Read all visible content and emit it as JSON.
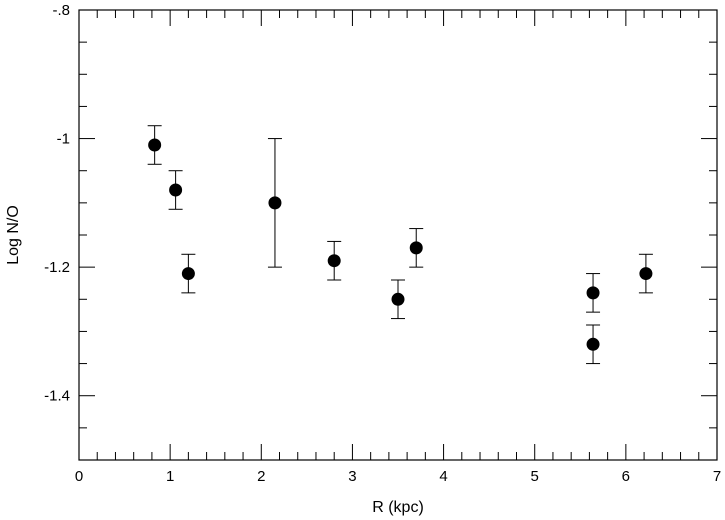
{
  "chart_data": {
    "type": "scatter",
    "title": "",
    "xlabel": "R (kpc)",
    "ylabel": "Log N/O",
    "xlim": [
      0,
      7
    ],
    "ylim": [
      -1.5,
      -0.8
    ],
    "x_ticks": [
      0,
      1,
      2,
      3,
      4,
      5,
      6,
      7
    ],
    "x_tick_labels": [
      "0",
      "1",
      "2",
      "3",
      "4",
      "5",
      "6",
      "7"
    ],
    "y_ticks": [
      -0.8,
      -1.0,
      -1.2,
      -1.4
    ],
    "y_tick_labels": [
      "-.8",
      "-1",
      "-1.2",
      "-1.4"
    ],
    "x_minor_step": 0.2,
    "y_minor_step": 0.05,
    "grid": false,
    "series": [
      {
        "points": [
          {
            "x": 0.83,
            "y": -1.01,
            "err": 0.03
          },
          {
            "x": 1.06,
            "y": -1.08,
            "err": 0.03
          },
          {
            "x": 1.2,
            "y": -1.21,
            "err": 0.03
          },
          {
            "x": 2.15,
            "y": -1.1,
            "err": 0.1
          },
          {
            "x": 2.8,
            "y": -1.19,
            "err": 0.03
          },
          {
            "x": 3.5,
            "y": -1.25,
            "err": 0.03
          },
          {
            "x": 3.7,
            "y": -1.17,
            "err": 0.03
          },
          {
            "x": 5.64,
            "y": -1.24,
            "err": 0.03
          },
          {
            "x": 5.64,
            "y": -1.32,
            "err": 0.03
          },
          {
            "x": 6.22,
            "y": -1.21,
            "err": 0.03
          }
        ]
      }
    ]
  }
}
